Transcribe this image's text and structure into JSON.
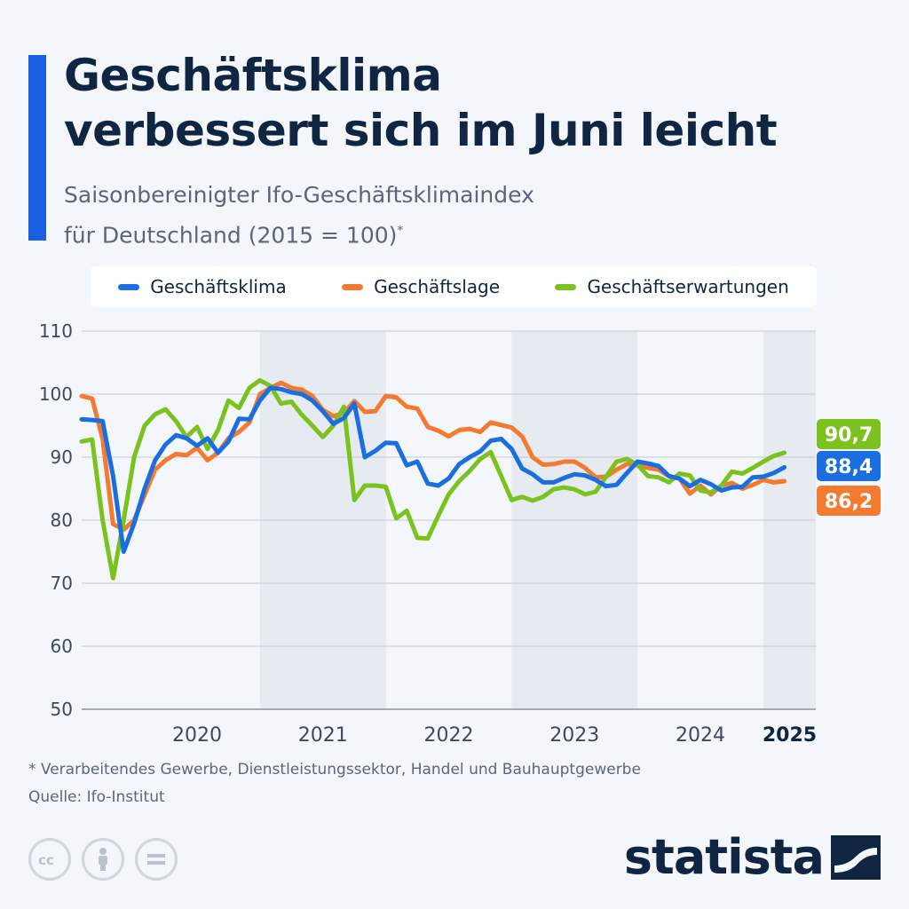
{
  "header": {
    "title": "Geschäftsklima\nverbessert sich im Juni leicht",
    "subtitle": "Saisonbereinigter Ifo-Geschäftsklimaindex\nfür Deutschland (2015 = 100)",
    "subtitle_mark": "*"
  },
  "footer": {
    "note": "* Verarbeitendes Gewerbe, Dienstleistungssektor, Handel und Bauhauptgewerbe",
    "source": "Quelle: Ifo-Institut",
    "brand": "statista"
  },
  "colors": {
    "accent": "#1a5fe0",
    "klima": "#1a6ee0",
    "lage": "#f47a30",
    "erwartungen": "#7cc21f",
    "band": "#e6eaf1",
    "grid": "#c4cad2"
  },
  "icons": [
    "cc-icon",
    "person-icon",
    "equals-icon",
    "statista-logo-icon"
  ],
  "chart_data": {
    "type": "line",
    "x_start": "2019-08",
    "x_end": "2025-06",
    "ylim": [
      50,
      110
    ],
    "yticks": [
      50,
      60,
      70,
      80,
      90,
      100,
      110
    ],
    "year_labels": [
      "2020",
      "2021",
      "2022",
      "2023",
      "2024",
      "2025"
    ],
    "highlight_year": "2025",
    "shaded_years": [
      "2021",
      "2023",
      "2025"
    ],
    "legend_position": "top",
    "grid": true,
    "series": [
      {
        "name": "Geschäftsklima",
        "color": "#1a6ee0",
        "end_label": "88,4",
        "values": [
          96.0,
          95.9,
          95.7,
          87.0,
          75.0,
          79.5,
          85.0,
          89.5,
          92.0,
          93.5,
          93.0,
          91.8,
          93.0,
          90.7,
          92.5,
          96.1,
          96.0,
          99.0,
          101.0,
          100.8,
          100.3,
          100.0,
          99.0,
          97.3,
          95.3,
          96.2,
          98.5,
          90.0,
          91.0,
          92.3,
          92.2,
          88.7,
          89.3,
          85.8,
          85.5,
          86.6,
          88.9,
          90.0,
          90.9,
          92.6,
          92.9,
          91.3,
          88.2,
          87.3,
          86.0,
          86.0,
          86.7,
          87.3,
          87.1,
          86.4,
          85.4,
          85.6,
          87.5,
          89.3,
          89.0,
          88.6,
          87.0,
          86.6,
          85.4,
          86.4,
          85.7,
          84.7,
          85.2,
          85.3,
          86.8,
          86.9,
          87.5,
          88.4
        ]
      },
      {
        "name": "Geschäftslage",
        "color": "#f47a30",
        "end_label": "86,2",
        "values": [
          99.7,
          99.3,
          92.9,
          79.4,
          78.5,
          80.0,
          84.0,
          88.0,
          89.5,
          90.5,
          90.3,
          91.5,
          89.5,
          90.7,
          93.0,
          94.0,
          95.5,
          100.0,
          101.0,
          101.8,
          101.0,
          100.7,
          99.7,
          97.5,
          96.5,
          97.0,
          98.9,
          97.2,
          97.3,
          99.7,
          99.5,
          98.0,
          97.7,
          94.8,
          94.2,
          93.3,
          94.3,
          94.5,
          94.0,
          95.5,
          95.1,
          94.7,
          93.3,
          90.0,
          88.8,
          88.9,
          89.3,
          89.3,
          88.3,
          86.8,
          86.9,
          88.0,
          88.9,
          88.7,
          88.3,
          88.0,
          87.0,
          86.6,
          84.2,
          85.5,
          84.1,
          85.5,
          85.9,
          85.0,
          85.6,
          86.4,
          86.0,
          86.2
        ]
      },
      {
        "name": "Geschäftserwartungen",
        "color": "#7cc21f",
        "end_label": "90,7",
        "values": [
          92.5,
          92.8,
          80.0,
          70.8,
          80.0,
          90.0,
          95.0,
          96.8,
          97.6,
          95.7,
          93.2,
          94.8,
          91.3,
          94.3,
          99.0,
          97.8,
          101.0,
          102.2,
          101.3,
          98.5,
          98.8,
          96.7,
          95.0,
          93.2,
          95.0,
          98.0,
          83.2,
          85.5,
          85.5,
          85.3,
          80.3,
          81.5,
          77.2,
          77.1,
          80.7,
          84.1,
          86.2,
          87.8,
          89.7,
          90.8,
          87.0,
          83.2,
          83.7,
          83.1,
          83.7,
          84.9,
          85.2,
          84.9,
          84.1,
          84.5,
          86.9,
          89.3,
          89.7,
          88.8,
          87.0,
          86.8,
          86.0,
          87.4,
          87.1,
          84.7,
          84.4,
          85.5,
          87.7,
          87.4,
          88.3,
          89.3,
          90.2,
          90.7
        ]
      }
    ]
  }
}
